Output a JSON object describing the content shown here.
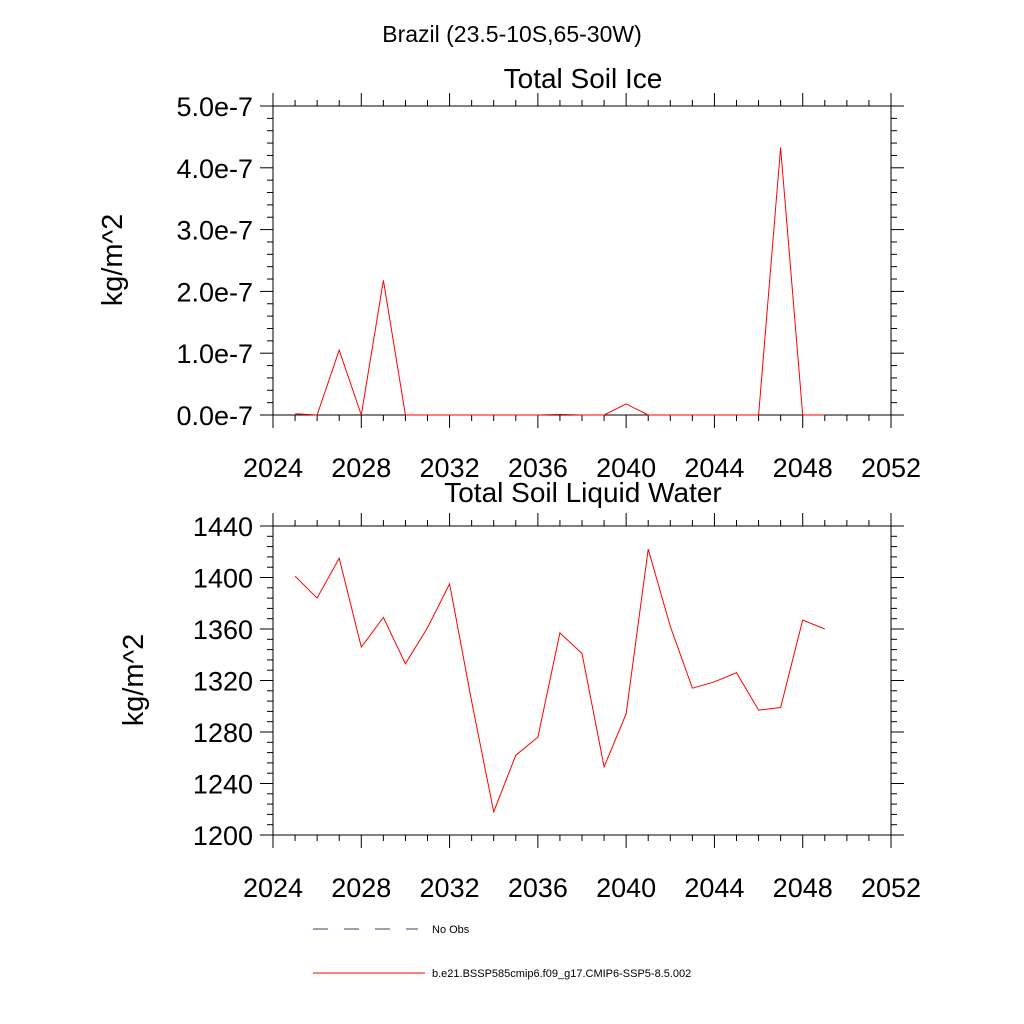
{
  "figure": {
    "suptitle": "Brazil (23.5-10S,65-30W)"
  },
  "chart_data": [
    {
      "type": "line",
      "title": "Total Soil Ice",
      "ylabel": "kg/m^2",
      "xlabel": "",
      "xlim": [
        2024,
        2052
      ],
      "ylim": [
        0,
        5e-07
      ],
      "xticks": [
        2024,
        2028,
        2032,
        2036,
        2040,
        2044,
        2048,
        2052
      ],
      "xtick_labels": [
        "2024",
        "2028",
        "2032",
        "2036",
        "2040",
        "2044",
        "2048",
        "2052"
      ],
      "yticks": [
        0,
        1e-07,
        2e-07,
        3e-07,
        4e-07,
        5e-07
      ],
      "ytick_labels": [
        "0.0e-7",
        "1.0e-7",
        "2.0e-7",
        "3.0e-7",
        "4.0e-7",
        "5.0e-7"
      ],
      "grid": false,
      "x": [
        2025,
        2026,
        2027,
        2028,
        2029,
        2030,
        2031,
        2032,
        2033,
        2034,
        2035,
        2036,
        2037,
        2038,
        2039,
        2040,
        2041,
        2042,
        2043,
        2044,
        2045,
        2046,
        2047,
        2048,
        2049
      ],
      "series": [
        {
          "name": "b.e21.BSSP585cmip6.f09_g17.CMIP6-SSP5-8.5.002",
          "color": "#ff0000",
          "values": [
            2e-09,
            0,
            1.05e-07,
            0,
            2.18e-07,
            0,
            0,
            0,
            0,
            0,
            0,
            0,
            1e-09,
            0,
            0,
            1.8e-08,
            0,
            0,
            0,
            0,
            0,
            0,
            4.33e-07,
            0,
            0
          ]
        }
      ]
    },
    {
      "type": "line",
      "title": "Total Soil Liquid Water",
      "ylabel": "kg/m^2",
      "xlabel": "",
      "xlim": [
        2024,
        2052
      ],
      "ylim": [
        1200,
        1440
      ],
      "xticks": [
        2024,
        2028,
        2032,
        2036,
        2040,
        2044,
        2048,
        2052
      ],
      "xtick_labels": [
        "2024",
        "2028",
        "2032",
        "2036",
        "2040",
        "2044",
        "2048",
        "2052"
      ],
      "yticks": [
        1200,
        1240,
        1280,
        1320,
        1360,
        1400,
        1440
      ],
      "ytick_labels": [
        "1200",
        "1240",
        "1280",
        "1320",
        "1360",
        "1400",
        "1440"
      ],
      "grid": false,
      "x": [
        2025,
        2026,
        2027,
        2028,
        2029,
        2030,
        2031,
        2032,
        2033,
        2034,
        2035,
        2036,
        2037,
        2038,
        2039,
        2040,
        2041,
        2042,
        2043,
        2044,
        2045,
        2046,
        2047,
        2048,
        2049
      ],
      "series": [
        {
          "name": "b.e21.BSSP585cmip6.f09_g17.CMIP6-SSP5-8.5.002",
          "color": "#ff0000",
          "values": [
            1401,
            1384,
            1415,
            1346,
            1369,
            1333,
            1361,
            1395,
            1304,
            1218,
            1262,
            1276,
            1357,
            1341,
            1253,
            1294,
            1422,
            1362,
            1314,
            1319,
            1326,
            1297,
            1299,
            1367,
            1360
          ]
        }
      ]
    }
  ],
  "legend": {
    "placement": "bottom",
    "entries": [
      {
        "label": "No Obs",
        "color": "#3f3f6f",
        "dash": "dashed"
      },
      {
        "label": "b.e21.BSSP585cmip6.f09_g17.CMIP6-SSP5-8.5.002",
        "color": "#ff0000",
        "dash": "solid"
      }
    ]
  }
}
